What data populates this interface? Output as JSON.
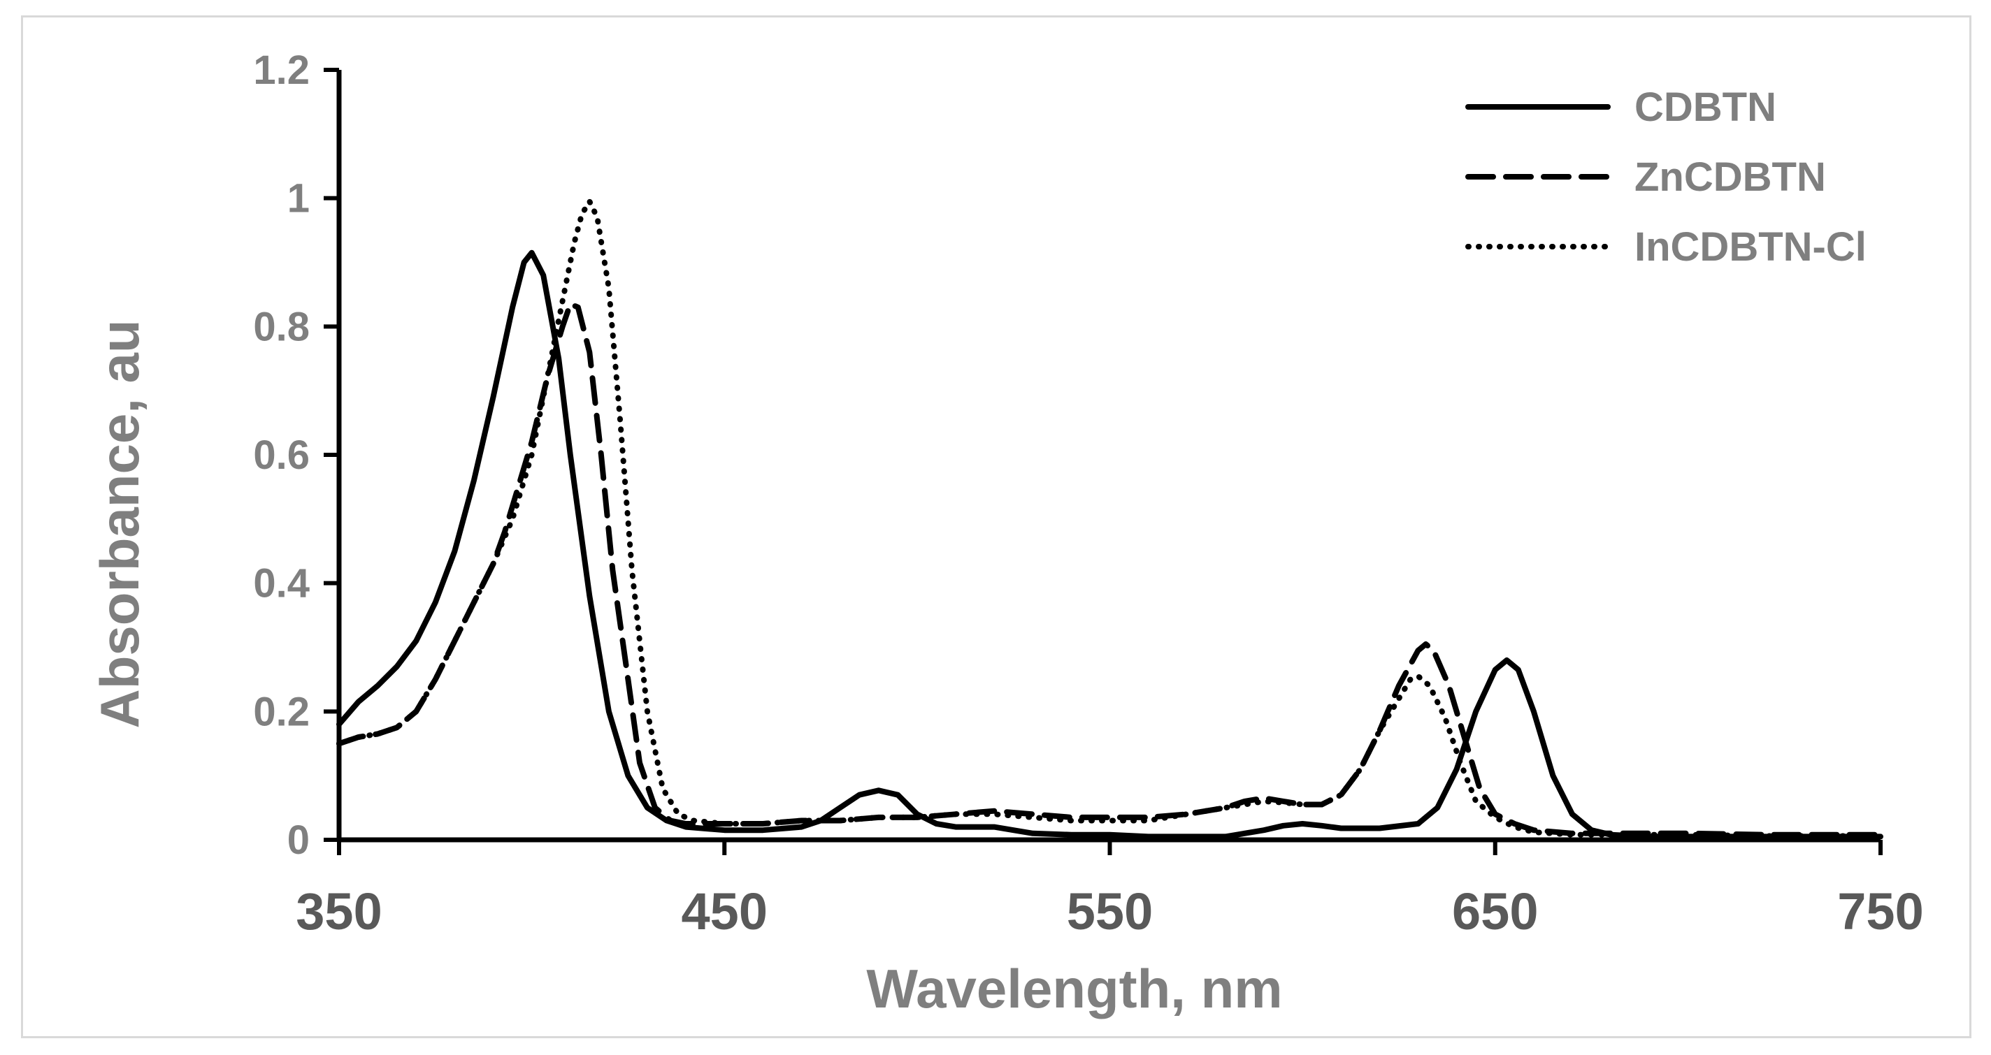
{
  "chart_data": {
    "type": "line",
    "title": "",
    "xlabel": "Wavelength, nm",
    "ylabel": "Absorbance, au",
    "xlim": [
      350,
      750
    ],
    "ylim": [
      0,
      1.2
    ],
    "x_ticks": [
      350,
      450,
      550,
      650,
      750
    ],
    "x_tick_labels": [
      "350",
      "450",
      "550",
      "650",
      "750"
    ],
    "y_ticks": [
      0,
      0.2,
      0.4,
      0.6,
      0.8,
      1,
      1.2
    ],
    "y_tick_labels": [
      "0",
      "0.2",
      "0.4",
      "0.6",
      "0.8",
      "1",
      "1.2"
    ],
    "grid": false,
    "legend": "top-right",
    "series": [
      {
        "name": "CDBTN",
        "style": "solid",
        "color": "#000000",
        "points": [
          [
            350,
            0.18
          ],
          [
            355,
            0.215
          ],
          [
            360,
            0.24
          ],
          [
            365,
            0.27
          ],
          [
            370,
            0.31
          ],
          [
            375,
            0.37
          ],
          [
            380,
            0.45
          ],
          [
            385,
            0.56
          ],
          [
            390,
            0.69
          ],
          [
            395,
            0.83
          ],
          [
            398,
            0.9
          ],
          [
            400,
            0.915
          ],
          [
            403,
            0.88
          ],
          [
            407,
            0.75
          ],
          [
            410,
            0.6
          ],
          [
            415,
            0.38
          ],
          [
            420,
            0.2
          ],
          [
            425,
            0.1
          ],
          [
            430,
            0.05
          ],
          [
            435,
            0.03
          ],
          [
            440,
            0.02
          ],
          [
            450,
            0.015
          ],
          [
            460,
            0.015
          ],
          [
            470,
            0.02
          ],
          [
            475,
            0.03
          ],
          [
            480,
            0.05
          ],
          [
            485,
            0.07
          ],
          [
            490,
            0.077
          ],
          [
            495,
            0.07
          ],
          [
            500,
            0.04
          ],
          [
            505,
            0.025
          ],
          [
            510,
            0.02
          ],
          [
            515,
            0.02
          ],
          [
            520,
            0.02
          ],
          [
            525,
            0.015
          ],
          [
            530,
            0.01
          ],
          [
            540,
            0.008
          ],
          [
            550,
            0.008
          ],
          [
            560,
            0.005
          ],
          [
            570,
            0.005
          ],
          [
            580,
            0.005
          ],
          [
            590,
            0.015
          ],
          [
            595,
            0.022
          ],
          [
            600,
            0.025
          ],
          [
            605,
            0.022
          ],
          [
            610,
            0.018
          ],
          [
            620,
            0.018
          ],
          [
            630,
            0.025
          ],
          [
            635,
            0.05
          ],
          [
            640,
            0.11
          ],
          [
            645,
            0.2
          ],
          [
            650,
            0.265
          ],
          [
            653,
            0.28
          ],
          [
            656,
            0.265
          ],
          [
            660,
            0.2
          ],
          [
            665,
            0.1
          ],
          [
            670,
            0.04
          ],
          [
            675,
            0.015
          ],
          [
            680,
            0.008
          ],
          [
            690,
            0.005
          ],
          [
            700,
            0.005
          ],
          [
            720,
            0.005
          ],
          [
            750,
            0.005
          ]
        ]
      },
      {
        "name": "ZnCDBTN",
        "style": "dash",
        "color": "#000000",
        "points": [
          [
            350,
            0.15
          ],
          [
            355,
            0.16
          ],
          [
            360,
            0.165
          ],
          [
            365,
            0.175
          ],
          [
            370,
            0.2
          ],
          [
            375,
            0.25
          ],
          [
            380,
            0.31
          ],
          [
            385,
            0.37
          ],
          [
            390,
            0.43
          ],
          [
            393,
            0.48
          ],
          [
            396,
            0.54
          ],
          [
            400,
            0.62
          ],
          [
            404,
            0.72
          ],
          [
            408,
            0.8
          ],
          [
            410,
            0.835
          ],
          [
            412,
            0.83
          ],
          [
            415,
            0.76
          ],
          [
            418,
            0.6
          ],
          [
            421,
            0.42
          ],
          [
            425,
            0.25
          ],
          [
            428,
            0.12
          ],
          [
            432,
            0.05
          ],
          [
            436,
            0.03
          ],
          [
            440,
            0.025
          ],
          [
            450,
            0.025
          ],
          [
            460,
            0.025
          ],
          [
            470,
            0.03
          ],
          [
            480,
            0.03
          ],
          [
            490,
            0.035
          ],
          [
            500,
            0.035
          ],
          [
            510,
            0.04
          ],
          [
            520,
            0.045
          ],
          [
            530,
            0.04
          ],
          [
            540,
            0.035
          ],
          [
            550,
            0.035
          ],
          [
            560,
            0.035
          ],
          [
            570,
            0.04
          ],
          [
            580,
            0.05
          ],
          [
            585,
            0.06
          ],
          [
            590,
            0.065
          ],
          [
            595,
            0.06
          ],
          [
            600,
            0.055
          ],
          [
            605,
            0.055
          ],
          [
            610,
            0.07
          ],
          [
            615,
            0.11
          ],
          [
            620,
            0.17
          ],
          [
            625,
            0.24
          ],
          [
            630,
            0.295
          ],
          [
            632,
            0.305
          ],
          [
            634,
            0.295
          ],
          [
            638,
            0.24
          ],
          [
            642,
            0.16
          ],
          [
            646,
            0.08
          ],
          [
            650,
            0.04
          ],
          [
            655,
            0.025
          ],
          [
            660,
            0.015
          ],
          [
            670,
            0.01
          ],
          [
            680,
            0.01
          ],
          [
            700,
            0.01
          ],
          [
            720,
            0.008
          ],
          [
            750,
            0.008
          ]
        ]
      },
      {
        "name": "InCDBTN-Cl",
        "style": "dot",
        "color": "#000000",
        "points": [
          [
            350,
            0.15
          ],
          [
            355,
            0.16
          ],
          [
            360,
            0.165
          ],
          [
            365,
            0.175
          ],
          [
            370,
            0.2
          ],
          [
            375,
            0.25
          ],
          [
            380,
            0.31
          ],
          [
            385,
            0.37
          ],
          [
            390,
            0.43
          ],
          [
            395,
            0.5
          ],
          [
            400,
            0.6
          ],
          [
            404,
            0.72
          ],
          [
            408,
            0.84
          ],
          [
            411,
            0.93
          ],
          [
            413,
            0.975
          ],
          [
            415,
            0.995
          ],
          [
            417,
            0.97
          ],
          [
            420,
            0.86
          ],
          [
            423,
            0.65
          ],
          [
            426,
            0.42
          ],
          [
            430,
            0.2
          ],
          [
            434,
            0.08
          ],
          [
            438,
            0.04
          ],
          [
            442,
            0.03
          ],
          [
            450,
            0.025
          ],
          [
            460,
            0.025
          ],
          [
            470,
            0.03
          ],
          [
            480,
            0.03
          ],
          [
            490,
            0.035
          ],
          [
            500,
            0.035
          ],
          [
            510,
            0.04
          ],
          [
            520,
            0.04
          ],
          [
            530,
            0.035
          ],
          [
            540,
            0.03
          ],
          [
            550,
            0.03
          ],
          [
            560,
            0.03
          ],
          [
            570,
            0.04
          ],
          [
            580,
            0.05
          ],
          [
            585,
            0.055
          ],
          [
            590,
            0.06
          ],
          [
            595,
            0.058
          ],
          [
            600,
            0.055
          ],
          [
            605,
            0.055
          ],
          [
            610,
            0.07
          ],
          [
            615,
            0.11
          ],
          [
            620,
            0.17
          ],
          [
            625,
            0.22
          ],
          [
            628,
            0.25
          ],
          [
            630,
            0.255
          ],
          [
            633,
            0.24
          ],
          [
            637,
            0.19
          ],
          [
            641,
            0.12
          ],
          [
            645,
            0.06
          ],
          [
            650,
            0.035
          ],
          [
            655,
            0.02
          ],
          [
            660,
            0.012
          ],
          [
            670,
            0.008
          ],
          [
            680,
            0.008
          ],
          [
            700,
            0.008
          ],
          [
            720,
            0.006
          ],
          [
            750,
            0.006
          ]
        ]
      }
    ]
  }
}
